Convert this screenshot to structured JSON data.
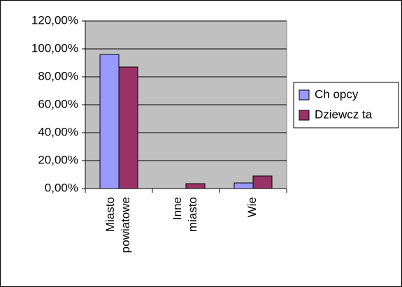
{
  "chart_data": {
    "type": "bar",
    "categories": [
      "Miasto powiatowe",
      "Inne miasto",
      "Wie"
    ],
    "series": [
      {
        "name": "Ch opcy",
        "color": "#9999ff",
        "values": [
          96,
          0,
          4
        ]
      },
      {
        "name": "Dziewcz ta",
        "color": "#993366",
        "values": [
          87,
          3.5,
          9
        ]
      }
    ],
    "ylim": [
      0,
      120
    ],
    "yticks": [
      {
        "value": 0,
        "label": "0,00%"
      },
      {
        "value": 20,
        "label": "20,00%"
      },
      {
        "value": 40,
        "label": "40,00%"
      },
      {
        "value": 60,
        "label": "60,00%"
      },
      {
        "value": 80,
        "label": "80,00%"
      },
      {
        "value": 100,
        "label": "100,00%"
      },
      {
        "value": 120,
        "label": "120,00%"
      }
    ],
    "grid": true,
    "plot_background": "#c0c0c0",
    "legend": "right"
  }
}
